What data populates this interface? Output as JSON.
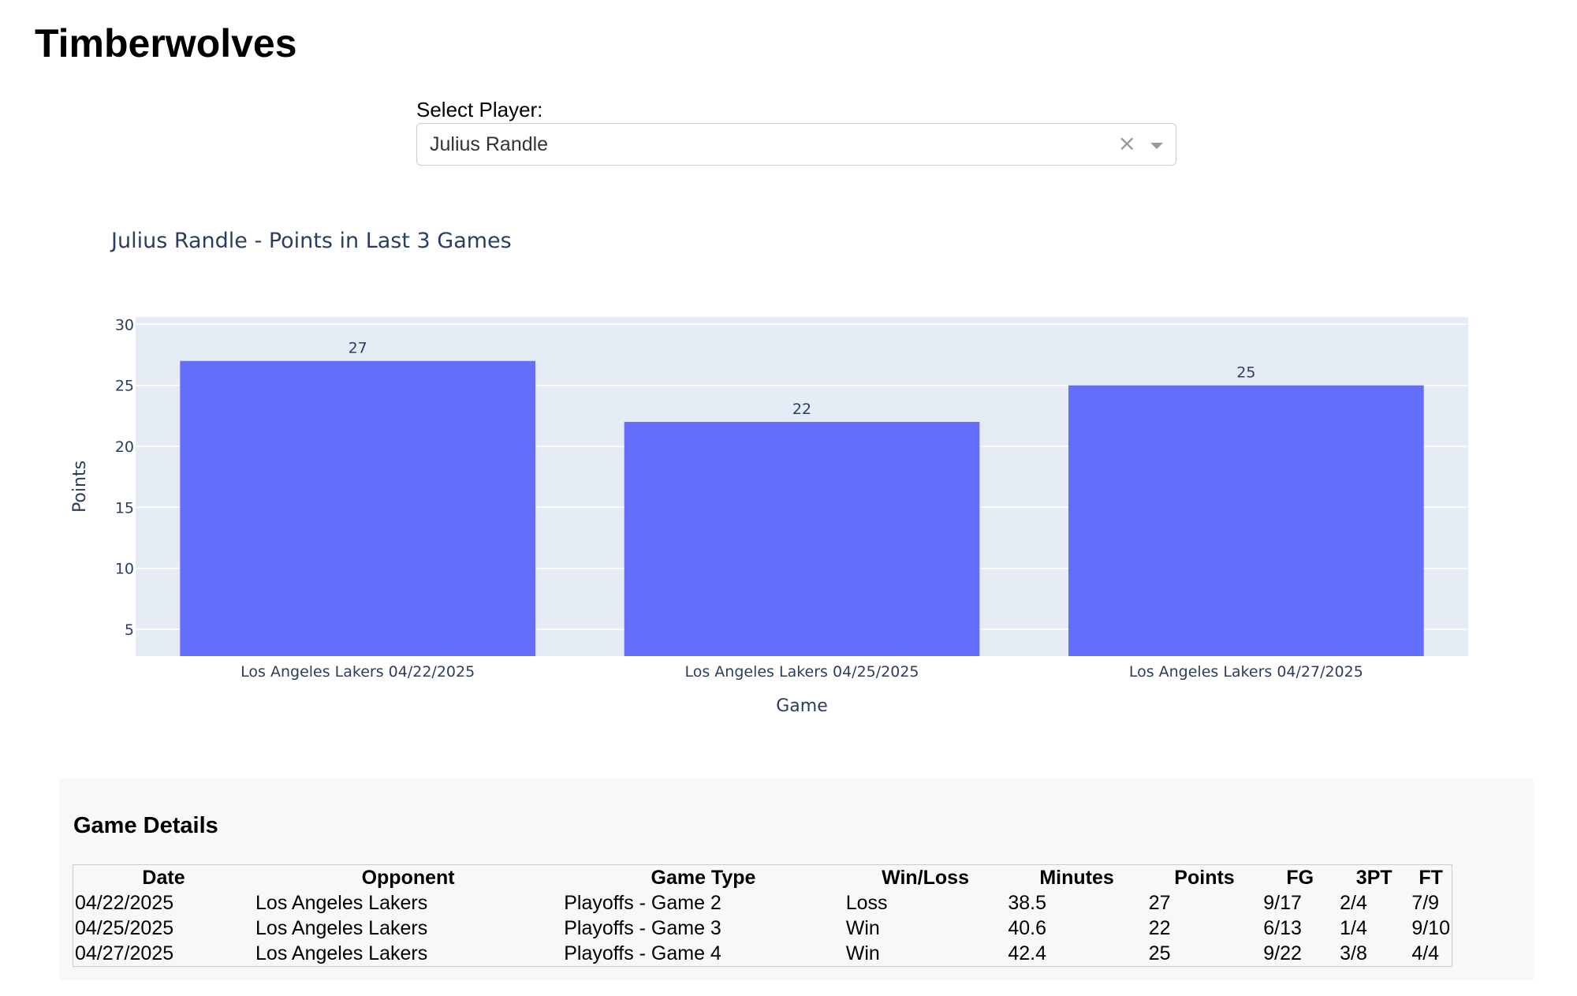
{
  "page": {
    "title": "Timberwolves"
  },
  "player_select": {
    "label": "Select Player:",
    "value": "Julius Randle",
    "clear_icon": "×",
    "icons": [
      "clear-icon",
      "chevron-down-icon"
    ]
  },
  "chart_data": {
    "type": "bar",
    "title": "Julius Randle - Points in Last 3 Games",
    "xlabel": "Game",
    "ylabel": "Points",
    "categories": [
      "Los Angeles Lakers 04/22/2025",
      "Los Angeles Lakers 04/25/2025",
      "Los Angeles Lakers 04/27/2025"
    ],
    "values": [
      27,
      22,
      25
    ],
    "data_labels": [
      "27",
      "22",
      "25"
    ],
    "ylim": [
      2.8,
      30.6
    ],
    "yticks": [
      5,
      10,
      15,
      20,
      25,
      30
    ],
    "grid": true,
    "colors": {
      "bar": "#636efa",
      "plot_bg": "#e5ecf6",
      "grid": "#ffffff",
      "text": "#2a3f5f"
    }
  },
  "game_details": {
    "title": "Game Details",
    "columns": [
      "Date",
      "Opponent",
      "Game Type",
      "Win/Loss",
      "Minutes",
      "Points",
      "FG",
      "3PT",
      "FT"
    ],
    "rows": [
      [
        "04/22/2025",
        "Los Angeles Lakers",
        "Playoffs - Game 2",
        "Loss",
        "38.5",
        "27",
        "9/17",
        "2/4",
        "7/9"
      ],
      [
        "04/25/2025",
        "Los Angeles Lakers",
        "Playoffs - Game 3",
        "Win",
        "40.6",
        "22",
        "6/13",
        "1/4",
        "9/10"
      ],
      [
        "04/27/2025",
        "Los Angeles Lakers",
        "Playoffs - Game 4",
        "Win",
        "42.4",
        "25",
        "9/22",
        "3/8",
        "4/4"
      ]
    ]
  }
}
